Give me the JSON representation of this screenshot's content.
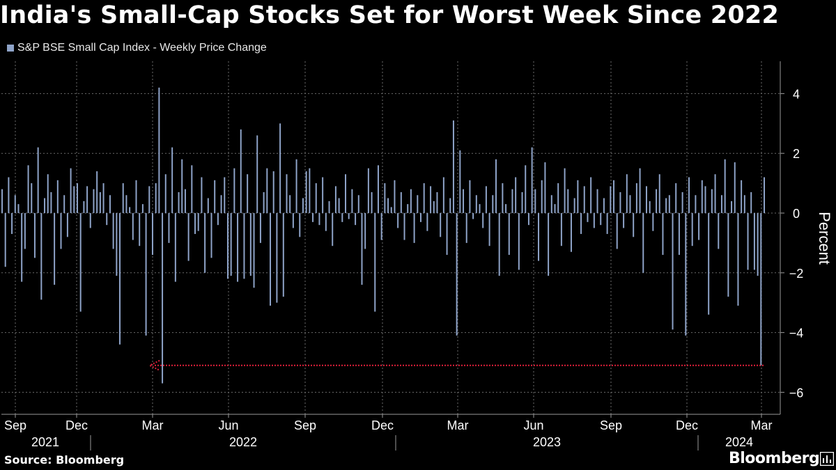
{
  "header": {
    "title": "India's Small-Cap Stocks Set for Worst Week Since 2022",
    "legend_label": "S&P BSE Small Cap Index - Weekly Price Change"
  },
  "footer": {
    "source": "Source: Bloomberg",
    "brand": "Bloomberg"
  },
  "colors": {
    "background": "#000000",
    "bar": "#8ea3c8",
    "annotation": "#e0203a",
    "grid": "#6b6b6b"
  },
  "chart_data": {
    "type": "bar",
    "title": "India's Small-Cap Stocks Set for Worst Week Since 2022",
    "series": [
      {
        "name": "S&P BSE Small Cap Index - Weekly Price Change",
        "values": [
          0.8,
          -1.8,
          1.2,
          -0.7,
          0.6,
          0.3,
          -2.3,
          -1.2,
          1.6,
          1.0,
          -1.5,
          2.2,
          -2.9,
          0.5,
          1.3,
          0.7,
          -2.4,
          1.1,
          -1.2,
          0.6,
          -0.8,
          1.5,
          0.9,
          1.0,
          -3.3,
          0.4,
          0.9,
          -0.5,
          0.8,
          1.4,
          0.7,
          1.0,
          -0.4,
          0.6,
          -1.2,
          -2.1,
          -4.4,
          1.0,
          0.6,
          0.2,
          -0.9,
          1.1,
          -1.1,
          0.3,
          -4.1,
          0.9,
          -1.4,
          1.0,
          4.2,
          -5.7,
          1.3,
          -1.0,
          2.2,
          -2.3,
          0.7,
          1.8,
          0.8,
          -1.6,
          1.6,
          -0.7,
          -0.6,
          1.2,
          -2.0,
          0.5,
          -1.5,
          1.1,
          -0.4,
          0.6,
          1.2,
          -2.2,
          -2.1,
          1.5,
          -2.3,
          2.8,
          -2.2,
          1.3,
          -2.1,
          -2.5,
          2.6,
          -1.0,
          0.7,
          1.5,
          -3.1,
          1.4,
          -3.0,
          3.0,
          -2.8,
          1.3,
          0.6,
          -0.5,
          1.8,
          -0.8,
          0.5,
          1.4,
          1.5,
          -0.3,
          1.0,
          -0.4,
          1.2,
          -0.6,
          0.4,
          -1.1,
          0.9,
          0.5,
          -0.3,
          1.3,
          -0.2,
          0.8,
          -0.4,
          0.6,
          -2.4,
          -1.2,
          1.5,
          0.7,
          -3.3,
          1.6,
          -0.9,
          1.0,
          0.5,
          0.2,
          1.1,
          -0.5,
          0.7,
          -0.9,
          0.3,
          0.8,
          -1.0,
          0.6,
          -0.3,
          1.0,
          -0.6,
          0.9,
          0.4,
          0.7,
          -0.8,
          1.2,
          -1.4,
          0.5,
          3.1,
          -4.1,
          2.1,
          0.8,
          -1.0,
          1.1,
          -0.2,
          0.6,
          0.3,
          -0.5,
          0.9,
          -1.1,
          0.6,
          1.8,
          -2.1,
          1.0,
          0.3,
          -1.4,
          0.8,
          1.2,
          -1.9,
          0.7,
          1.6,
          -0.4,
          2.2,
          0.8,
          -1.6,
          1.1,
          1.7,
          -2.1,
          0.6,
          0.3,
          1.0,
          -1.1,
          1.5,
          0.8,
          -1.3,
          0.5,
          1.1,
          -0.7,
          0.9,
          -0.3,
          1.2,
          -0.5,
          0.8,
          -0.4,
          0.5,
          -0.7,
          0.9,
          1.1,
          -1.2,
          0.7,
          -0.5,
          1.3,
          0.6,
          -0.8,
          1.0,
          1.5,
          -2.0,
          0.9,
          0.4,
          -0.6,
          0.8,
          1.3,
          -1.4,
          0.5,
          0.6,
          -3.9,
          1.0,
          -1.4,
          0.7,
          -4.1,
          1.2,
          -1.1,
          0.6,
          -0.9,
          1.1,
          0.9,
          -3.4,
          0.8,
          1.3,
          -1.2,
          0.6,
          1.8,
          -2.8,
          0.4,
          1.7,
          -3.1,
          1.1,
          0.6,
          -1.9,
          0.7,
          -1.9,
          -2.1,
          -5.1,
          1.2
        ]
      }
    ],
    "x_axis": {
      "months": [
        "Sep",
        "Dec",
        "Mar",
        "Jun",
        "Sep",
        "Dec",
        "Mar",
        "Jun",
        "Sep",
        "Dec",
        "Mar"
      ],
      "years": [
        "2021",
        "2022",
        "2023",
        "2024"
      ]
    },
    "ylabel": "Percent",
    "ylim": [
      -6.5,
      5
    ],
    "yticks": [
      4,
      2,
      0,
      -2,
      -4,
      -6
    ],
    "grid": true,
    "annotation": {
      "type": "arrow",
      "value": -5.1,
      "description": "worst week since 2022 marker"
    }
  }
}
